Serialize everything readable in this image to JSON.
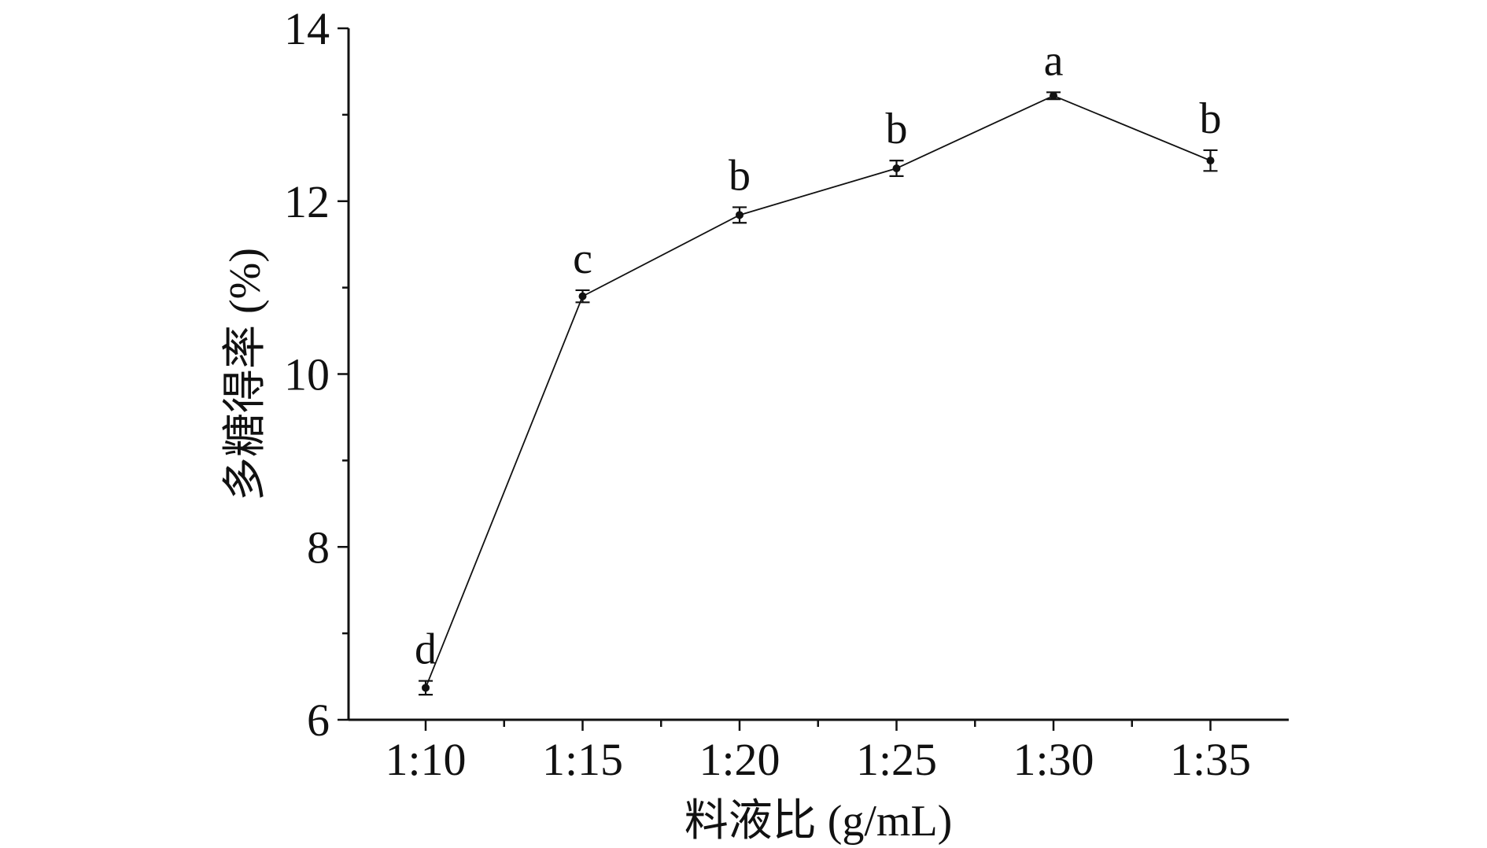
{
  "chart_data": {
    "type": "line",
    "title": "",
    "xlabel": "料液比 (g/mL)",
    "ylabel": "多糖得率 (%)",
    "categories": [
      "1:10",
      "1:15",
      "1:20",
      "1:25",
      "1:30",
      "1:35"
    ],
    "series": [
      {
        "values": [
          6.37,
          10.9,
          11.84,
          12.38,
          13.22,
          12.47
        ],
        "errors": [
          0.08,
          0.07,
          0.09,
          0.09,
          0.04,
          0.12
        ],
        "labels": [
          "d",
          "c",
          "b",
          "b",
          "a",
          "b"
        ]
      }
    ],
    "ylim": [
      6,
      14
    ],
    "yticks": [
      "6",
      "8",
      "10",
      "12",
      "14"
    ],
    "grid": false,
    "legend": "none",
    "colors": {
      "line": "#111111",
      "axis": "#111111"
    }
  }
}
